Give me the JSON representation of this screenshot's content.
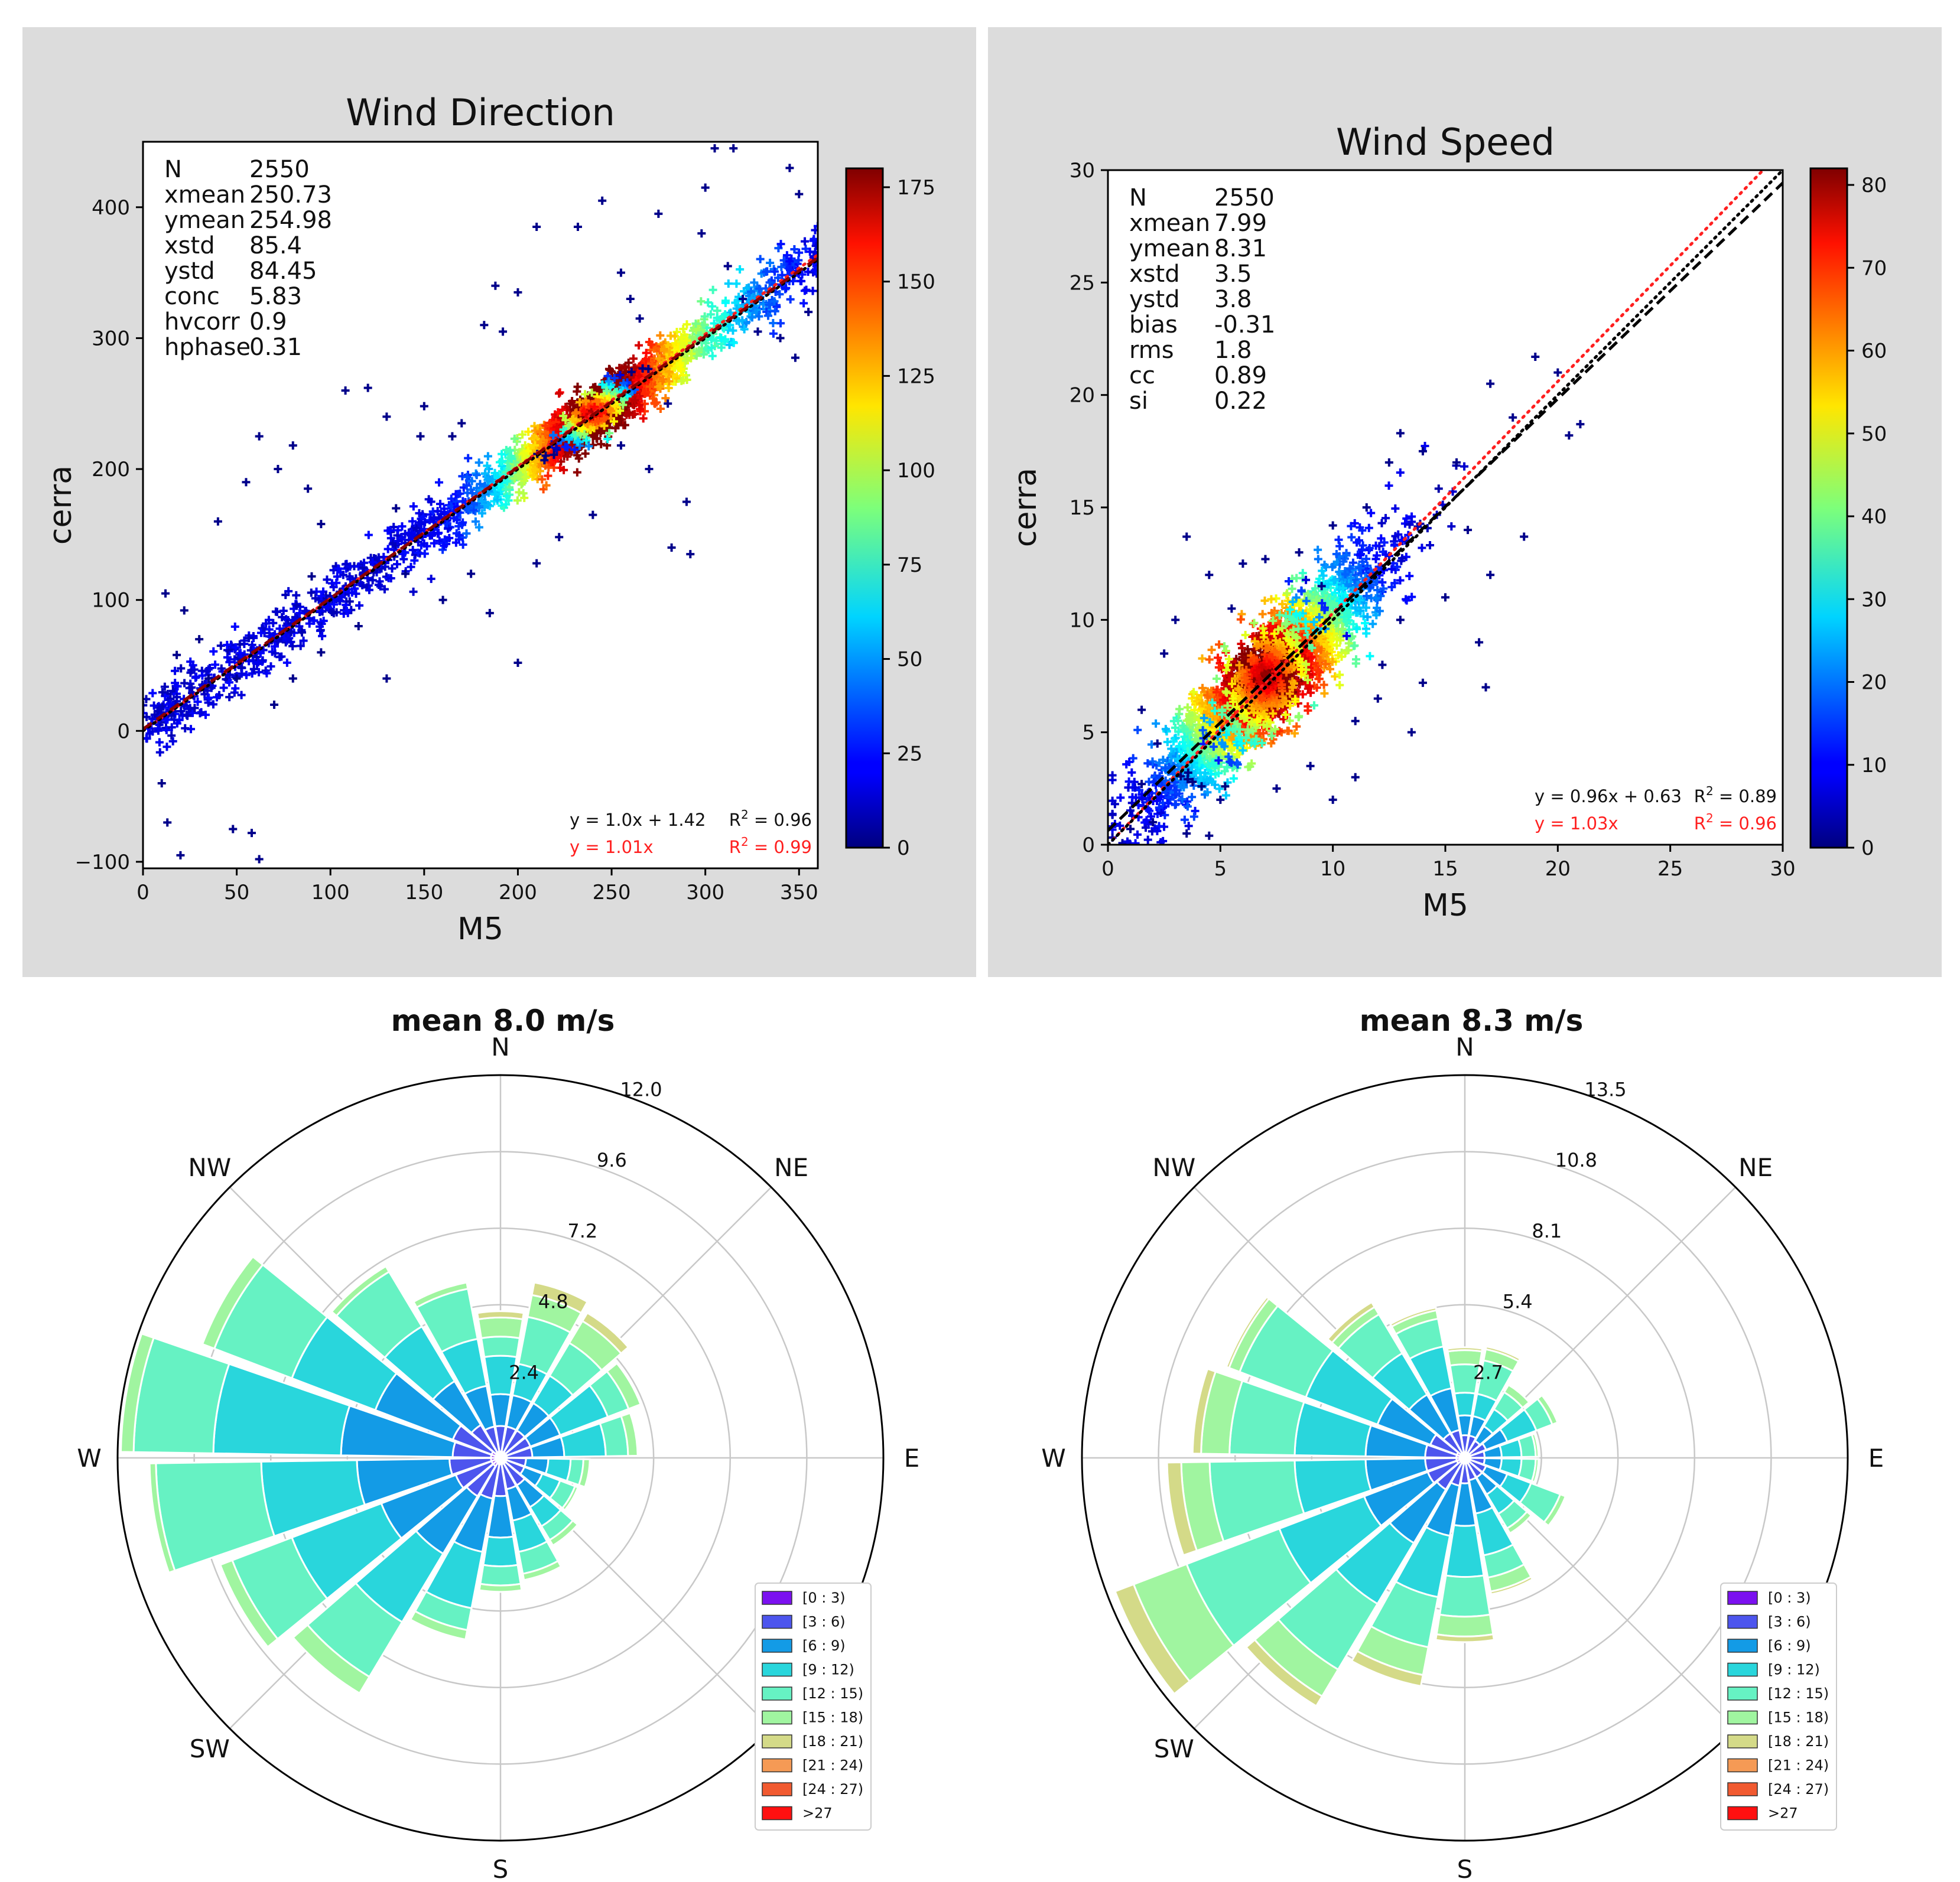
{
  "colors": {
    "panel_bg": "#dcdcdc",
    "identity_line": "#000000",
    "fit_line": "#8b0000",
    "red_text": "#ff2020",
    "grid": "#c8c8c8",
    "bins": [
      "#7b10f0",
      "#4d55ee",
      "#139be6",
      "#29d6dc",
      "#66f2c3",
      "#a0f5a0",
      "#d4da88",
      "#f59a55",
      "#f15a30",
      "#ff1010"
    ]
  },
  "chart_data": [
    {
      "id": "wind-direction",
      "type": "scatter",
      "title": "Wind Direction",
      "xlabel": "M5",
      "ylabel": "cerra",
      "xlim": [
        0,
        360
      ],
      "ylim": [
        -105,
        450
      ],
      "xticks": [
        0,
        50,
        100,
        150,
        200,
        250,
        300,
        350
      ],
      "yticks": [
        -100,
        0,
        100,
        200,
        300,
        400
      ],
      "colorbar": {
        "min": 0,
        "max": 180,
        "ticks": [
          0,
          25,
          50,
          75,
          100,
          125,
          150,
          175
        ]
      },
      "stats": [
        {
          "label": "N",
          "value": "2550"
        },
        {
          "label": "xmean",
          "value": "250.73"
        },
        {
          "label": "ymean",
          "value": "254.98"
        },
        {
          "label": "xstd",
          "value": "85.4"
        },
        {
          "label": "ystd",
          "value": "84.45"
        },
        {
          "label": "conc",
          "value": "5.83"
        },
        {
          "label": "hvcorr",
          "value": "0.9"
        },
        {
          "label": "hphase",
          "value": "0.31"
        }
      ],
      "fit_eq": "y = 1.0x + 1.42",
      "fit_r2": "= 0.96",
      "origin_eq": "y = 1.01x",
      "origin_r2": "= 0.99",
      "fit": {
        "slope": 1.0,
        "intercept": 1.42
      },
      "origin_fit": {
        "slope": 1.01
      },
      "density_peak": [
        240,
        243
      ],
      "outliers": [
        [
          12,
          105
        ],
        [
          18,
          58
        ],
        [
          22,
          92
        ],
        [
          10,
          -40
        ],
        [
          13,
          -70
        ],
        [
          20,
          -95
        ],
        [
          48,
          -75
        ],
        [
          58,
          -78
        ],
        [
          62,
          -98
        ],
        [
          40,
          160
        ],
        [
          55,
          190
        ],
        [
          62,
          225
        ],
        [
          72,
          200
        ],
        [
          80,
          218
        ],
        [
          88,
          185
        ],
        [
          95,
          158
        ],
        [
          108,
          260
        ],
        [
          120,
          262
        ],
        [
          130,
          240
        ],
        [
          150,
          248
        ],
        [
          135,
          170
        ],
        [
          148,
          225
        ],
        [
          165,
          225
        ],
        [
          170,
          235
        ],
        [
          182,
          310
        ],
        [
          188,
          340
        ],
        [
          192,
          305
        ],
        [
          200,
          335
        ],
        [
          210,
          385
        ],
        [
          232,
          385
        ],
        [
          245,
          405
        ],
        [
          255,
          350
        ],
        [
          265,
          315
        ],
        [
          275,
          395
        ],
        [
          270,
          200
        ],
        [
          282,
          140
        ],
        [
          292,
          135
        ],
        [
          200,
          52
        ],
        [
          210,
          128
        ],
        [
          222,
          148
        ],
        [
          255,
          218
        ],
        [
          240,
          165
        ],
        [
          290,
          175
        ],
        [
          298,
          380
        ],
        [
          312,
          355
        ],
        [
          328,
          305
        ],
        [
          345,
          430
        ],
        [
          340,
          300
        ],
        [
          348,
          285
        ],
        [
          320,
          330
        ],
        [
          300,
          415
        ],
        [
          305,
          445
        ],
        [
          315,
          445
        ],
        [
          350,
          410
        ],
        [
          30,
          70
        ],
        [
          50,
          40
        ],
        [
          90,
          118
        ],
        [
          115,
          80
        ],
        [
          130,
          40
        ],
        [
          140,
          120
        ],
        [
          160,
          100
        ],
        [
          175,
          120
        ],
        [
          185,
          90
        ],
        [
          80,
          40
        ],
        [
          70,
          20
        ],
        [
          35,
          40
        ],
        [
          95,
          60
        ],
        [
          280,
          250
        ],
        [
          260,
          330
        ],
        [
          355,
          320
        ]
      ]
    },
    {
      "id": "wind-speed",
      "type": "scatter",
      "title": "Wind Speed",
      "xlabel": "M5",
      "ylabel": "cerra",
      "xlim": [
        0,
        30
      ],
      "ylim": [
        0,
        30
      ],
      "xticks": [
        0,
        5,
        10,
        15,
        20,
        25,
        30
      ],
      "yticks": [
        0,
        5,
        10,
        15,
        20,
        25,
        30
      ],
      "colorbar": {
        "min": 0,
        "max": 82,
        "ticks": [
          0,
          10,
          20,
          30,
          40,
          50,
          60,
          70,
          80
        ]
      },
      "stats": [
        {
          "label": "N",
          "value": "2550"
        },
        {
          "label": "xmean",
          "value": "7.99"
        },
        {
          "label": "ymean",
          "value": "8.31"
        },
        {
          "label": "xstd",
          "value": "3.5"
        },
        {
          "label": "ystd",
          "value": "3.8"
        },
        {
          "label": "bias",
          "value": "-0.31"
        },
        {
          "label": "rms",
          "value": "1.8"
        },
        {
          "label": "cc",
          "value": "0.89"
        },
        {
          "label": "si",
          "value": "0.22"
        }
      ],
      "fit_eq": "y = 0.96x + 0.63",
      "fit_r2": "= 0.89",
      "origin_eq": "y = 1.03x",
      "origin_r2": "= 0.96",
      "fit": {
        "slope": 0.96,
        "intercept": 0.63
      },
      "origin_fit": {
        "slope": 1.03
      },
      "density_peak": [
        7,
        7.5
      ],
      "outliers": [
        [
          3.5,
          13.7
        ],
        [
          4.5,
          12
        ],
        [
          6,
          12.5
        ],
        [
          7,
          12.7
        ],
        [
          8.5,
          13
        ],
        [
          19,
          21.7
        ],
        [
          20,
          21
        ],
        [
          21,
          18.7
        ],
        [
          20.5,
          18.2
        ],
        [
          18.5,
          13.7
        ],
        [
          16,
          14
        ],
        [
          17,
          12
        ],
        [
          16.5,
          9
        ],
        [
          16.8,
          7
        ],
        [
          14,
          7.2
        ],
        [
          13.5,
          5
        ],
        [
          12,
          6.5
        ],
        [
          11,
          3
        ],
        [
          10,
          2
        ],
        [
          3.5,
          0.5
        ],
        [
          4.5,
          0.4
        ],
        [
          5,
          2
        ],
        [
          1.5,
          2.7
        ],
        [
          2.2,
          4.5
        ],
        [
          1.5,
          6
        ],
        [
          1,
          0.7
        ],
        [
          2,
          1
        ],
        [
          7.5,
          2.5
        ],
        [
          9,
          3.5
        ],
        [
          18,
          19
        ],
        [
          17,
          20.5
        ],
        [
          15.5,
          17
        ],
        [
          14,
          17.5
        ],
        [
          13,
          18.3
        ],
        [
          12.5,
          17
        ],
        [
          11.5,
          15
        ],
        [
          10,
          14.2
        ],
        [
          9.5,
          11.5
        ],
        [
          13,
          10
        ],
        [
          15,
          11
        ],
        [
          12.2,
          8
        ],
        [
          11,
          5.5
        ],
        [
          2.5,
          8.5
        ],
        [
          3,
          10
        ],
        [
          5.5,
          10.5
        ]
      ]
    },
    {
      "id": "wind-rose-m5",
      "type": "windrose",
      "title": "mean 8.0 m/s",
      "compass": [
        "N",
        "NE",
        "E",
        "S",
        "SW",
        "W",
        "NW"
      ],
      "radial_max": 12.0,
      "radial_ticks": [
        "2.4",
        "4.8",
        "7.2",
        "9.6",
        "12.0"
      ],
      "bin_labels": [
        "[0 : 3)",
        "[3 : 6)",
        "[6 : 9)",
        "[9 : 12)",
        "[12 : 15)",
        "[15 : 18)",
        "[18 : 21)",
        "[21 : 24)",
        "[24 : 27)",
        ">27"
      ],
      "sectors": [
        [
          0.2,
          1.0,
          2.0,
          3.2,
          3.8,
          4.4,
          4.6,
          4.6,
          4.6,
          4.6
        ],
        [
          0.2,
          1.0,
          2.0,
          3.0,
          4.5,
          5.2,
          5.6,
          5.6,
          5.6,
          5.6
        ],
        [
          0.2,
          1.0,
          2.0,
          3.0,
          4.2,
          5.0,
          5.3,
          5.3,
          5.3,
          5.3
        ],
        [
          0.2,
          1.0,
          2.0,
          3.6,
          4.3,
          4.7,
          4.7,
          4.7,
          4.7,
          4.7
        ],
        [
          0.2,
          1.0,
          2.0,
          3.3,
          4.0,
          4.3,
          4.3,
          4.3,
          4.3,
          4.3
        ],
        [
          0.2,
          0.8,
          1.5,
          2.2,
          2.6,
          2.8,
          2.8,
          2.8,
          2.8,
          2.8
        ],
        [
          0.2,
          0.8,
          1.4,
          2.0,
          2.5,
          2.6,
          2.6,
          2.6,
          2.6,
          2.6
        ],
        [
          0.2,
          1.0,
          1.8,
          2.5,
          3.0,
          3.2,
          3.2,
          3.2,
          3.2,
          3.2
        ],
        [
          0.2,
          1.0,
          2.0,
          3.0,
          3.7,
          3.9,
          3.9,
          3.9,
          3.9,
          3.9
        ],
        [
          0.2,
          1.2,
          2.5,
          3.4,
          4.0,
          4.2,
          4.2,
          4.2,
          4.2,
          4.2
        ],
        [
          0.2,
          1.3,
          3.0,
          4.8,
          5.5,
          5.8,
          5.8,
          5.8,
          5.8,
          5.8
        ],
        [
          0.3,
          1.4,
          3.5,
          6.0,
          8.0,
          8.6,
          8.6,
          8.6,
          8.6,
          8.6
        ],
        [
          0.3,
          1.5,
          4.0,
          7.0,
          9.0,
          9.4,
          9.4,
          9.4,
          9.4,
          9.4
        ],
        [
          0.3,
          1.6,
          4.5,
          7.5,
          10.8,
          11.0,
          11.0,
          11.0,
          11.0,
          11.0
        ],
        [
          0.3,
          1.5,
          5.0,
          9.0,
          11.5,
          11.9,
          11.9,
          11.9,
          11.9,
          11.9
        ],
        [
          0.3,
          1.6,
          4.2,
          7.0,
          9.6,
          10.0,
          10.0,
          10.0,
          10.0,
          10.0
        ],
        [
          0.2,
          1.2,
          2.8,
          4.8,
          6.8,
          7.0,
          7.0,
          7.0,
          7.0,
          7.0
        ],
        [
          0.2,
          1.0,
          2.3,
          3.8,
          5.4,
          5.6,
          5.6,
          5.6,
          5.6,
          5.6
        ]
      ]
    },
    {
      "id": "wind-rose-cerra",
      "type": "windrose",
      "title": "mean 8.3 m/s",
      "compass": [
        "N",
        "NE",
        "E",
        "S",
        "SW",
        "W",
        "NW"
      ],
      "radial_max": 13.5,
      "radial_ticks": [
        "2.7",
        "5.4",
        "8.1",
        "10.8",
        "13.5"
      ],
      "bin_labels": [
        "[0 : 3)",
        "[3 : 6)",
        "[6 : 9)",
        "[9 : 12)",
        "[12 : 15)",
        "[15 : 18)",
        "[18 : 21)",
        "[21 : 24)",
        "[24 : 27)",
        ">27"
      ],
      "sectors": [
        [
          0.2,
          0.8,
          1.5,
          2.3,
          3.3,
          3.8,
          3.9,
          3.9,
          3.9,
          3.9
        ],
        [
          0.2,
          0.8,
          1.5,
          2.3,
          3.5,
          3.9,
          4.0,
          4.0,
          4.0,
          4.0
        ],
        [
          0.2,
          0.7,
          1.3,
          2.0,
          2.7,
          3.0,
          3.0,
          3.0,
          3.0,
          3.0
        ],
        [
          0.2,
          0.8,
          1.6,
          2.7,
          3.3,
          3.5,
          3.5,
          3.5,
          3.5,
          3.5
        ],
        [
          0.2,
          0.7,
          1.3,
          2.0,
          2.5,
          2.6,
          2.6,
          2.6,
          2.6,
          2.6
        ],
        [
          0.2,
          0.7,
          1.3,
          2.0,
          2.5,
          2.6,
          2.6,
          2.6,
          2.6,
          2.6
        ],
        [
          0.2,
          0.8,
          1.6,
          2.5,
          3.6,
          3.8,
          3.8,
          3.8,
          3.8,
          3.8
        ],
        [
          0.2,
          0.8,
          1.5,
          2.3,
          2.9,
          3.1,
          3.1,
          3.1,
          3.1,
          3.1
        ],
        [
          0.2,
          0.8,
          2.0,
          3.5,
          4.3,
          4.8,
          4.9,
          4.9,
          4.9,
          4.9
        ],
        [
          0.2,
          0.9,
          2.4,
          4.2,
          5.6,
          6.3,
          6.5,
          6.5,
          6.5,
          6.5
        ],
        [
          0.2,
          1.0,
          2.8,
          5.0,
          6.8,
          7.8,
          8.2,
          8.2,
          8.2,
          8.2
        ],
        [
          0.2,
          1.3,
          3.5,
          6.0,
          8.7,
          9.8,
          10.2,
          10.2,
          10.2,
          10.2
        ],
        [
          0.3,
          1.4,
          3.8,
          7.0,
          10.5,
          12.5,
          13.2,
          13.2,
          13.2,
          13.2
        ],
        [
          0.3,
          1.4,
          3.5,
          6.0,
          9.0,
          10.0,
          10.5,
          10.5,
          10.5,
          10.5
        ],
        [
          0.3,
          1.4,
          3.5,
          6.0,
          8.3,
          9.3,
          9.6,
          9.6,
          9.6,
          9.6
        ],
        [
          0.3,
          1.3,
          3.3,
          6.0,
          8.5,
          8.9,
          9.0,
          9.0,
          9.0,
          9.0
        ],
        [
          0.2,
          1.0,
          2.6,
          4.3,
          5.9,
          6.2,
          6.4,
          6.4,
          6.4,
          6.4
        ],
        [
          0.2,
          1.0,
          2.5,
          4.0,
          5.0,
          5.3,
          5.4,
          5.4,
          5.4,
          5.4
        ]
      ]
    }
  ]
}
